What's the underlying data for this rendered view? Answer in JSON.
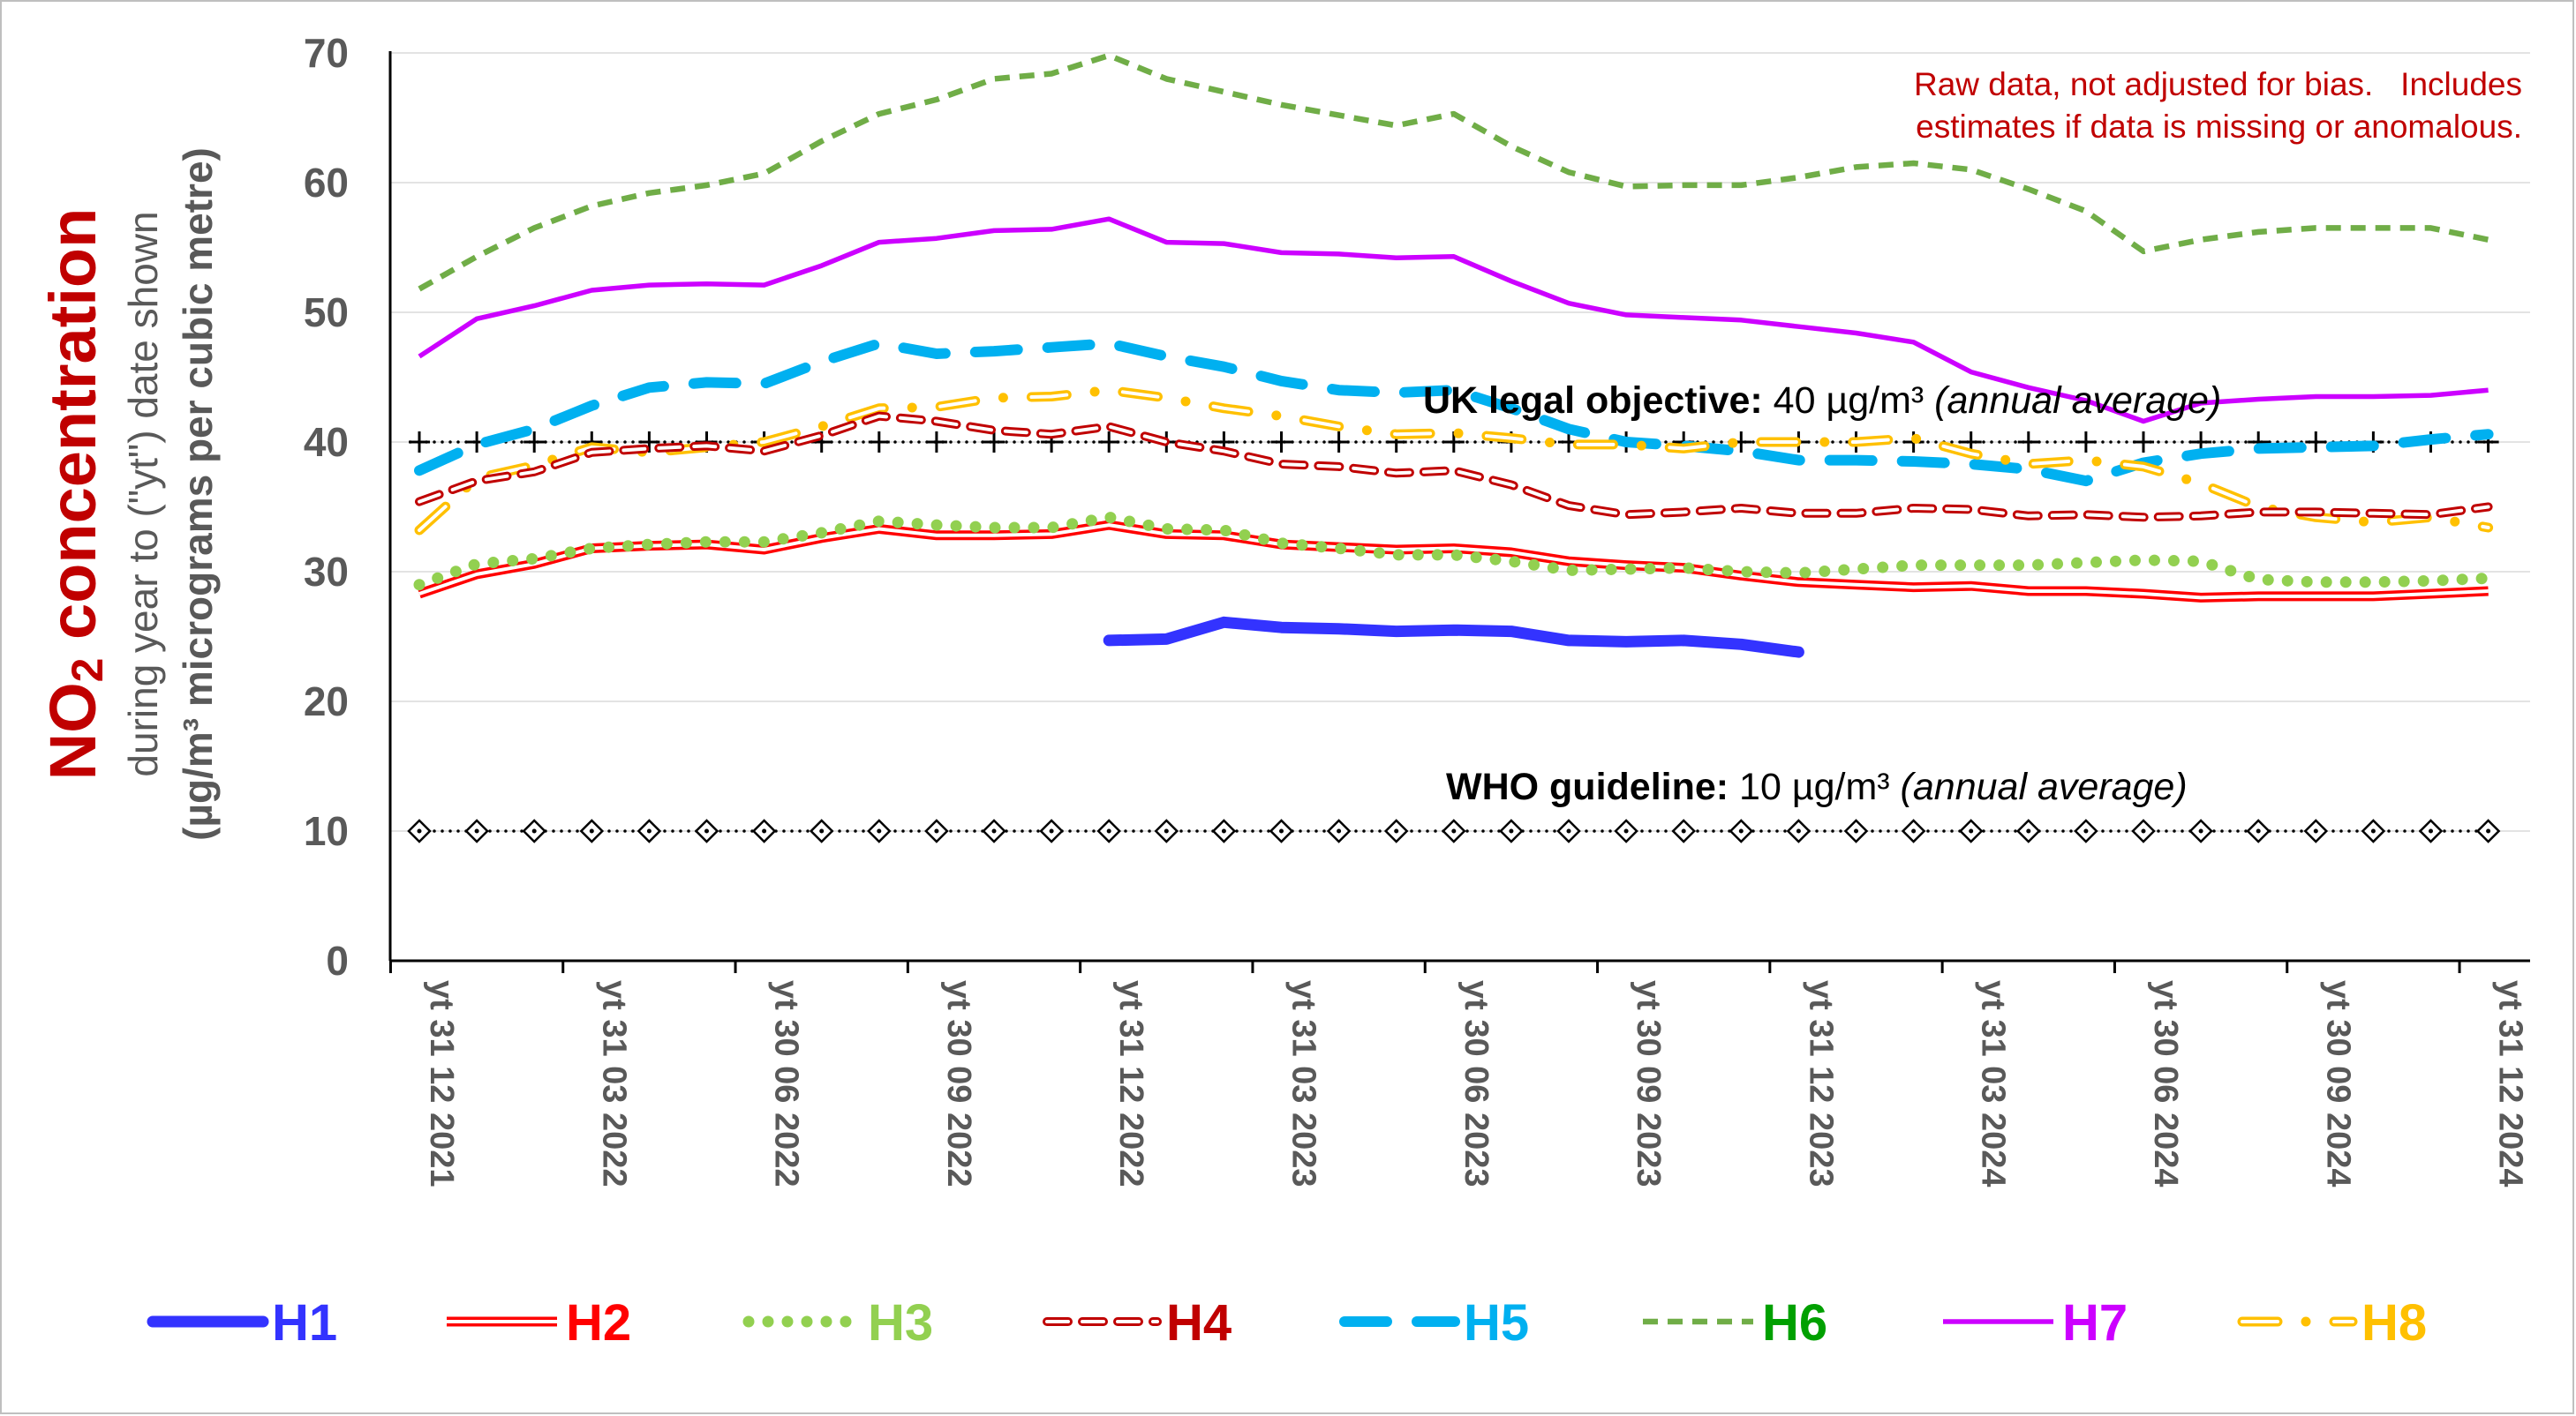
{
  "chart_data": {
    "type": "line",
    "title": "",
    "ylabel_main": "NO2 concentration",
    "ylabel_main_prefix": "NO",
    "ylabel_main_sub": "2",
    "ylabel_main_suffix": " concentration",
    "ylabel_line2": "during year to (\"yt\") date shown",
    "ylabel_line3": "(µg/m³ micrograms per cubic metre)",
    "ylim": [
      0,
      70
    ],
    "yticks": [
      0,
      10,
      20,
      30,
      40,
      50,
      60,
      70
    ],
    "grid": true,
    "x_count": 37,
    "x_tick_labels": [
      "yt 31 12 2021",
      "yt 31 03 2022",
      "yt 30 06 2022",
      "yt 30 09 2022",
      "yt 31 12 2022",
      "yt 31 03 2023",
      "yt 30 06 2023",
      "yt 30 09 2023",
      "yt 31 12 2023",
      "yt 31 03 2024",
      "yt 30 06 2024",
      "yt 30 09 2024",
      "yt 31 12 2024"
    ],
    "x_tick_every": 3,
    "note_line1": "Raw data, not adjusted for bias.   Includes",
    "note_line2": "estimates if data is missing or anomalous.",
    "reference_lines": [
      {
        "value": 40,
        "label_bold": "UK legal objective:",
        "label_value": " 40 µg/m³ ",
        "label_italic": "(annual average)",
        "marker": "plus"
      },
      {
        "value": 10,
        "label_bold": "WHO guideline:",
        "label_value": " 10 µg/m³ ",
        "label_italic": "(annual average)",
        "marker": "diamond"
      }
    ],
    "legend_position": "bottom",
    "series": [
      {
        "name": "H1",
        "color": "#3333FF",
        "label_color": "#3333FF",
        "style": "thick",
        "values": [
          null,
          null,
          null,
          null,
          null,
          null,
          null,
          null,
          null,
          null,
          null,
          null,
          24.7,
          24.8,
          26.1,
          25.7,
          25.6,
          25.4,
          25.5,
          25.4,
          24.7,
          24.6,
          24.7,
          24.4,
          23.8,
          null,
          null,
          null,
          null,
          null,
          null,
          null,
          null,
          null,
          null,
          null,
          null
        ]
      },
      {
        "name": "H2",
        "color": "#FF0000",
        "label_color": "#FF0000",
        "style": "double",
        "values": [
          28.3,
          29.8,
          30.6,
          31.8,
          32.0,
          32.1,
          31.7,
          32.6,
          33.3,
          32.8,
          32.8,
          32.9,
          33.6,
          32.9,
          32.8,
          32.1,
          31.9,
          31.7,
          31.8,
          31.5,
          30.8,
          30.5,
          30.3,
          29.7,
          29.2,
          29.0,
          28.8,
          28.9,
          28.5,
          28.5,
          28.3,
          28.0,
          28.1,
          28.1,
          28.1,
          28.3,
          28.5
        ]
      },
      {
        "name": "H3",
        "color": "#92D050",
        "label_color": "#92D050",
        "style": "dots",
        "values": [
          29.0,
          30.6,
          31.0,
          31.8,
          32.1,
          32.3,
          32.3,
          33.0,
          33.9,
          33.6,
          33.4,
          33.4,
          34.2,
          33.3,
          33.2,
          32.2,
          31.8,
          31.3,
          31.3,
          30.8,
          30.1,
          30.2,
          30.3,
          30.0,
          29.9,
          30.2,
          30.5,
          30.5,
          30.5,
          30.7,
          30.9,
          30.8,
          29.4,
          29.2,
          29.2,
          29.3,
          29.5
        ]
      },
      {
        "name": "H4",
        "color": "#C00000",
        "label_color": "#C00000",
        "style": "outline-dash",
        "values": [
          35.4,
          37.0,
          37.7,
          39.2,
          39.5,
          39.7,
          39.3,
          40.5,
          42.0,
          41.6,
          40.9,
          40.6,
          41.2,
          40.0,
          39.3,
          38.3,
          38.1,
          37.6,
          37.8,
          36.7,
          35.1,
          34.4,
          34.6,
          34.9,
          34.5,
          34.5,
          34.9,
          34.8,
          34.3,
          34.4,
          34.2,
          34.3,
          34.6,
          34.6,
          34.5,
          34.4,
          35.0
        ]
      },
      {
        "name": "H5",
        "color": "#00B0F0",
        "label_color": "#00B0F0",
        "style": "long-dash",
        "values": [
          37.8,
          39.8,
          41.0,
          42.8,
          44.2,
          44.6,
          44.5,
          46.2,
          47.6,
          46.8,
          47.0,
          47.3,
          47.6,
          46.6,
          45.8,
          44.7,
          44.0,
          43.8,
          44.0,
          42.6,
          41.0,
          40.0,
          39.7,
          39.3,
          38.6,
          38.6,
          38.5,
          38.3,
          37.9,
          37.0,
          38.4,
          39.1,
          39.5,
          39.6,
          39.7,
          40.2,
          40.6
        ]
      },
      {
        "name": "H6",
        "color": "#70AD47",
        "label_color": "#00A000",
        "style": "dash",
        "values": [
          51.8,
          54.3,
          56.5,
          58.2,
          59.2,
          59.8,
          60.7,
          63.2,
          65.3,
          66.4,
          68.0,
          68.4,
          69.8,
          68.0,
          67.0,
          66.0,
          65.2,
          64.4,
          65.3,
          62.8,
          60.8,
          59.7,
          59.8,
          59.8,
          60.4,
          61.2,
          61.5,
          61.0,
          59.5,
          57.8,
          54.7,
          55.6,
          56.2,
          56.5,
          56.5,
          56.5,
          55.6
        ]
      },
      {
        "name": "H7",
        "color": "#CC00FF",
        "label_color": "#CC00FF",
        "style": "solid",
        "values": [
          46.6,
          49.5,
          50.5,
          51.7,
          52.1,
          52.2,
          52.1,
          53.6,
          55.4,
          55.7,
          56.3,
          56.4,
          57.2,
          55.4,
          55.3,
          54.6,
          54.5,
          54.2,
          54.3,
          52.4,
          50.7,
          49.8,
          49.6,
          49.4,
          48.9,
          48.4,
          47.7,
          45.4,
          44.2,
          43.2,
          41.6,
          43.0,
          43.3,
          43.5,
          43.5,
          43.6,
          44.0
        ]
      },
      {
        "name": "H8",
        "color": "#FFC000",
        "label_color": "#FFC000",
        "style": "outline-dash-dot",
        "values": [
          33.2,
          37.2,
          38.2,
          39.6,
          39.2,
          39.6,
          40.0,
          41.2,
          42.6,
          42.7,
          43.4,
          43.5,
          44.0,
          43.4,
          42.6,
          42.0,
          41.2,
          40.6,
          40.7,
          40.3,
          39.8,
          39.8,
          39.5,
          40.0,
          40.0,
          40.0,
          40.3,
          39.1,
          38.3,
          38.6,
          38.1,
          36.8,
          35.0,
          34.2,
          33.8,
          34.2,
          33.4
        ]
      }
    ]
  }
}
